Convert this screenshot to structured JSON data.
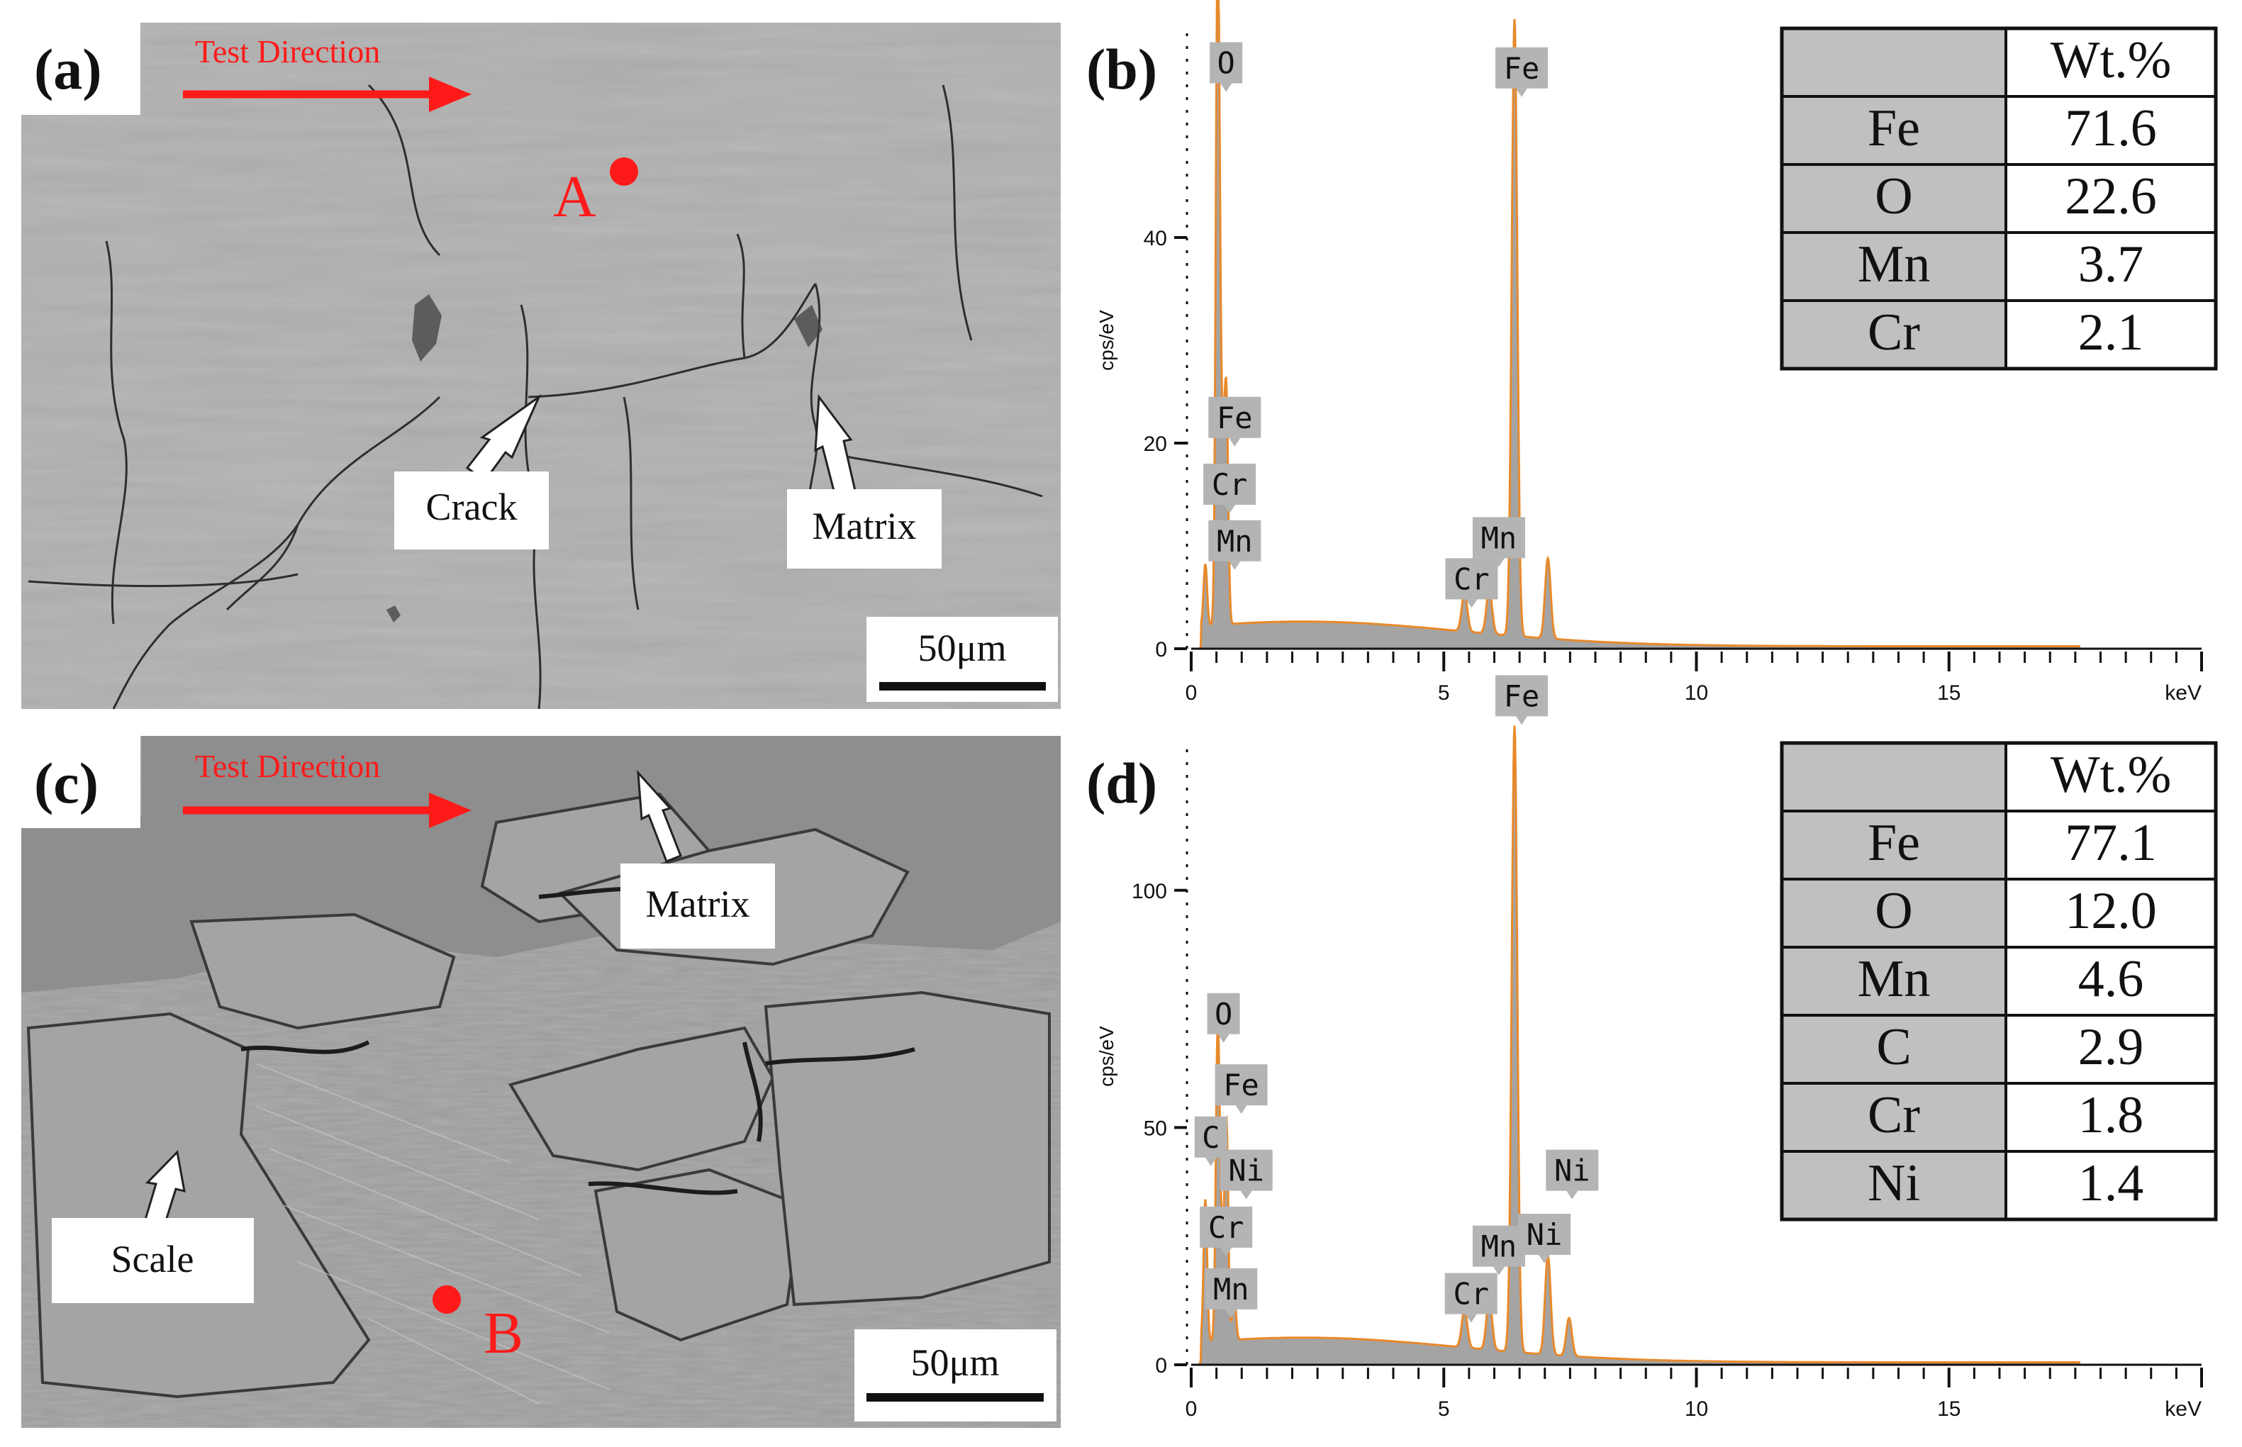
{
  "panels": {
    "a": {
      "letter": "(a)",
      "test_direction": "Test Direction",
      "point_label": "A",
      "callouts": {
        "crack": "Crack",
        "matrix": "Matrix"
      },
      "scale_bar": "50μm"
    },
    "b": {
      "letter": "(b)"
    },
    "c": {
      "letter": "(c)",
      "test_direction": "Test Direction",
      "point_label": "B",
      "callouts": {
        "matrix": "Matrix",
        "scale": "Scale"
      },
      "scale_bar": "50μm"
    },
    "d": {
      "letter": "(d)"
    }
  },
  "colors": {
    "spectrum_line": "#e8892b",
    "spectrum_fill": "#9a9a9a",
    "peak_label_bg": "#b4b4b4",
    "marker_red": "#ff1a1a",
    "sem_gray": "#a8a8a8",
    "table_header_bg": "#c0c0c0"
  },
  "chart_data": [
    {
      "panel": "b",
      "type": "line",
      "ylabel": "cps/eV",
      "xlabel": "keV",
      "xlim": [
        0,
        20
      ],
      "ylim": [
        0,
        60
      ],
      "x_ticks": [
        0,
        5,
        10,
        15
      ],
      "y_ticks": [
        0,
        20,
        40
      ],
      "peaks": [
        {
          "element": "O",
          "energy": 0.52,
          "height": 60
        },
        {
          "element": "Fe",
          "energy": 0.7,
          "height": 20
        },
        {
          "element": "Cr",
          "energy": 0.57,
          "height": 20
        },
        {
          "element": "Mn",
          "energy": 0.64,
          "height": 13
        },
        {
          "element": "C",
          "energy": 0.28,
          "height": 6
        },
        {
          "element": "Cr",
          "energy": 5.41,
          "height": 3.8
        },
        {
          "element": "Mn",
          "energy": 5.9,
          "height": 4.4
        },
        {
          "element": "Fe",
          "energy": 6.4,
          "height": 60
        },
        {
          "element": "Fe",
          "energy": 7.06,
          "height": 7.8
        }
      ],
      "peak_labels": [
        {
          "text": "O",
          "energy": 0.55,
          "value": 57
        },
        {
          "text": "Fe",
          "energy": 0.72,
          "value": 22.5
        },
        {
          "text": "Cr",
          "energy": 0.62,
          "value": 16
        },
        {
          "text": "Mn",
          "energy": 0.72,
          "value": 10.5
        },
        {
          "text": "Cr",
          "energy": 5.41,
          "value": 6.8
        },
        {
          "text": "Mn",
          "energy": 5.95,
          "value": 10.8
        },
        {
          "text": "Fe",
          "energy": 6.4,
          "value": 56.5
        }
      ],
      "table": {
        "header": [
          "",
          "Wt.%"
        ],
        "rows": [
          [
            "Fe",
            "71.6"
          ],
          [
            "O",
            "22.6"
          ],
          [
            "Mn",
            "3.7"
          ],
          [
            "Cr",
            "2.1"
          ]
        ]
      }
    },
    {
      "panel": "d",
      "type": "line",
      "ylabel": "cps/eV",
      "xlabel": "keV",
      "xlim": [
        0,
        20
      ],
      "ylim": [
        0,
        130
      ],
      "x_ticks": [
        0,
        5,
        10,
        15
      ],
      "y_ticks": [
        0,
        50,
        100
      ],
      "peaks": [
        {
          "element": "C",
          "energy": 0.28,
          "height": 30
        },
        {
          "element": "O",
          "energy": 0.52,
          "height": 58
        },
        {
          "element": "Cr",
          "energy": 0.57,
          "height": 22
        },
        {
          "element": "Mn",
          "energy": 0.64,
          "height": 12
        },
        {
          "element": "Fe",
          "energy": 0.7,
          "height": 44
        },
        {
          "element": "Ni",
          "energy": 0.85,
          "height": 10
        },
        {
          "element": "Cr",
          "energy": 5.41,
          "height": 8
        },
        {
          "element": "Mn",
          "energy": 5.9,
          "height": 11
        },
        {
          "element": "Fe",
          "energy": 6.4,
          "height": 132
        },
        {
          "element": "Fe",
          "energy": 7.06,
          "height": 21
        },
        {
          "element": "Ni",
          "energy": 7.48,
          "height": 8
        }
      ],
      "peak_labels": [
        {
          "text": "O",
          "energy": 0.5,
          "value": 74
        },
        {
          "text": "Fe",
          "energy": 0.85,
          "value": 59
        },
        {
          "text": "C",
          "energy": 0.25,
          "value": 48
        },
        {
          "text": "Ni",
          "energy": 0.95,
          "value": 41
        },
        {
          "text": "Cr",
          "energy": 0.55,
          "value": 29
        },
        {
          "text": "Mn",
          "energy": 0.65,
          "value": 16
        },
        {
          "text": "Cr",
          "energy": 5.4,
          "value": 15
        },
        {
          "text": "Mn",
          "energy": 5.95,
          "value": 25
        },
        {
          "text": "Ni",
          "energy": 6.85,
          "value": 27.5
        },
        {
          "text": "Ni",
          "energy": 7.4,
          "value": 41
        },
        {
          "text": "Fe",
          "energy": 6.4,
          "value": 141
        }
      ],
      "table": {
        "header": [
          "",
          "Wt.%"
        ],
        "rows": [
          [
            "Fe",
            "77.1"
          ],
          [
            "O",
            "12.0"
          ],
          [
            "Mn",
            "4.6"
          ],
          [
            "C",
            "2.9"
          ],
          [
            "Cr",
            "1.8"
          ],
          [
            "Ni",
            "1.4"
          ]
        ]
      }
    }
  ]
}
